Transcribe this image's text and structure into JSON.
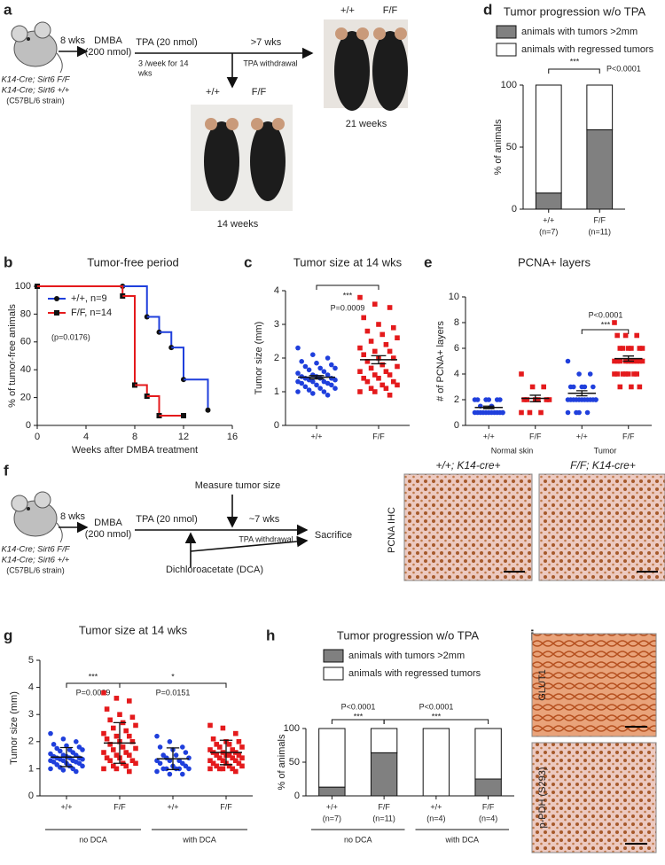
{
  "panel_labels": [
    "a",
    "b",
    "c",
    "d",
    "e",
    "f",
    "g",
    "h",
    "i"
  ],
  "panel_a": {
    "genotypes": [
      "K14-Cre; Sirt6 F/F",
      "K14-Cre; Sirt6 +/+"
    ],
    "strain": "(C57BL/6 strain)",
    "step1": "8 wks",
    "dmba": "DMBA",
    "dmba_dose": "(200 nmol)",
    "tpa": "TPA (20 nmol)",
    "tpa_schedule": [
      "3 /week for 14",
      "wks"
    ],
    "step3": ">7 wks",
    "withdrawal": "TPA withdrawal",
    "photo_late": {
      "labels": [
        "+/+",
        "F/F"
      ],
      "caption": "21 weeks"
    },
    "photo_early": {
      "labels": [
        "+/+",
        "F/F"
      ],
      "caption": "14 weeks"
    }
  },
  "panel_f": {
    "genotypes": [
      "K14-Cre; Sirt6 F/F",
      "K14-Cre; Sirt6 +/+"
    ],
    "strain": "(C57BL/6 strain)",
    "step1": "8 wks",
    "dmba": "DMBA",
    "dmba_dose": "(200 nmol)",
    "tpa": "TPA (20 nmol)",
    "measure": "Measure tumor size",
    "step3": "~7 wks",
    "withdrawal": "TPA withdrawal",
    "end": "Sacrifice",
    "dca": "Dichloroacetate (DCA)",
    "stain": "PCNA IHC",
    "images": [
      "+/+; K14-cre+",
      "F/F; K14-cre+"
    ]
  },
  "panel_i": {
    "stains": [
      "GLUT1",
      "p-PDH (S293)"
    ]
  },
  "chart_data": [
    {
      "type": "bar",
      "stacked": true,
      "title": "Tumor progression w/o TPA",
      "y_label": "% of animals",
      "categories": [
        "+/+",
        "F/F"
      ],
      "category_notes": [
        "(n=7)",
        "(n=11)"
      ],
      "series": [
        {
          "name": "animals with tumors >2mm",
          "color": "#808080",
          "values": [
            13,
            64
          ]
        },
        {
          "name": "animals with regressed tumors",
          "color": "#ffffff",
          "values": [
            87,
            36
          ]
        }
      ],
      "ylim": [
        0,
        100
      ],
      "yticks": [
        0,
        50,
        100
      ],
      "annotations": [
        "***",
        "P<0.0001"
      ]
    },
    {
      "type": "line",
      "step": true,
      "title": "Tumor-free period",
      "x_label": "Weeks after DMBA treatment",
      "y_label": "% of tumor-free animals",
      "xlim": [
        0,
        16
      ],
      "xticks": [
        0,
        4,
        8,
        12,
        16
      ],
      "ylim": [
        0,
        100
      ],
      "yticks": [
        0,
        20,
        40,
        60,
        80,
        100
      ],
      "series": [
        {
          "name": "+/+, n=9",
          "color": "#1f3fdc",
          "marker": "circle",
          "x": [
            0,
            7,
            9,
            10,
            11,
            12,
            14
          ],
          "values": [
            100,
            100,
            78,
            67,
            56,
            33,
            11
          ]
        },
        {
          "name": "F/F, n=14",
          "color": "#e41a1c",
          "marker": "square",
          "x": [
            0,
            7,
            8,
            9,
            10,
            12
          ],
          "values": [
            100,
            93,
            29,
            21,
            7,
            7
          ]
        }
      ],
      "annotations": [
        "(p=0.0176)"
      ]
    },
    {
      "type": "dotplot",
      "title": "Tumor size at 14 wks",
      "y_label": "Tumor size (mm)",
      "categories": [
        "+/+",
        "F/F"
      ],
      "colors": [
        "#1f3fdc",
        "#e41a1c"
      ],
      "markers": [
        "circle",
        "square"
      ],
      "values": [
        [
          2.3,
          2.1,
          2.0,
          1.9,
          1.85,
          1.8,
          1.75,
          1.7,
          1.7,
          1.65,
          1.6,
          1.55,
          1.5,
          1.5,
          1.45,
          1.45,
          1.4,
          1.4,
          1.4,
          1.35,
          1.35,
          1.3,
          1.3,
          1.3,
          1.25,
          1.25,
          1.2,
          1.2,
          1.15,
          1.1,
          1.1,
          1.05,
          1.0,
          1.0,
          0.95,
          0.9
        ],
        [
          3.8,
          3.6,
          3.5,
          3.2,
          3.0,
          2.9,
          2.8,
          2.7,
          2.6,
          2.5,
          2.4,
          2.3,
          2.2,
          2.2,
          2.1,
          2.0,
          2.0,
          1.9,
          1.8,
          1.75,
          1.7,
          1.6,
          1.6,
          1.5,
          1.5,
          1.4,
          1.4,
          1.3,
          1.3,
          1.2,
          1.2,
          1.1,
          1.1,
          1.0,
          1.0,
          0.9
        ]
      ],
      "means": [
        1.43,
        1.95
      ],
      "errors": [
        0.05,
        0.12
      ],
      "ylim": [
        0,
        4
      ],
      "yticks": [
        0,
        1,
        2,
        3,
        4
      ],
      "annotations": [
        "***",
        "P=0.0009"
      ]
    },
    {
      "type": "dotplot",
      "title": "PCNA+ layers",
      "y_label": "# of PCNA+ layers",
      "categories": [
        "+/+",
        "F/F",
        "+/+",
        "F/F"
      ],
      "group_labels": [
        "Normal skin",
        "Tumor"
      ],
      "colors": [
        "#1f3fdc",
        "#e41a1c",
        "#1f3fdc",
        "#e41a1c"
      ],
      "markers": [
        "circle",
        "square",
        "circle",
        "square"
      ],
      "values": [
        [
          2,
          2,
          2,
          2,
          2,
          2,
          1.5,
          1.5,
          1,
          1,
          1,
          1,
          1,
          1,
          1,
          1,
          1,
          1,
          1,
          1
        ],
        [
          4,
          3,
          3,
          2,
          2,
          2,
          2,
          2,
          2,
          1,
          1,
          1
        ],
        [
          5,
          4,
          4,
          3,
          3,
          3,
          3,
          3,
          2,
          2,
          2,
          2,
          2,
          2,
          2,
          2,
          2,
          2,
          2,
          2,
          1,
          1,
          1,
          1
        ],
        [
          8,
          7,
          7,
          7,
          6,
          6,
          6,
          6,
          6,
          6,
          5,
          5,
          5,
          5,
          5,
          5,
          5,
          5,
          5,
          5,
          4,
          4,
          4,
          4,
          4,
          4,
          4,
          3,
          3,
          3
        ]
      ],
      "means": [
        1.4,
        2.1,
        2.5,
        5.2
      ],
      "errors": [
        0.1,
        0.25,
        0.2,
        0.2
      ],
      "ylim": [
        0,
        10
      ],
      "yticks": [
        0,
        2,
        4,
        6,
        8,
        10
      ],
      "annotations": [
        "P<0.0001",
        "***"
      ]
    },
    {
      "type": "dotplot",
      "title": "Tumor size at 14 wks",
      "y_label": "Tumor size (mm)",
      "categories": [
        "+/+",
        "F/F",
        "+/+",
        "F/F"
      ],
      "group_labels": [
        "no DCA",
        "with DCA"
      ],
      "colors": [
        "#1f3fdc",
        "#e41a1c",
        "#1f3fdc",
        "#e41a1c"
      ],
      "markers": [
        "circle",
        "square",
        "circle",
        "square"
      ],
      "values": [
        [
          2.3,
          2.1,
          2.0,
          1.9,
          1.85,
          1.8,
          1.75,
          1.7,
          1.7,
          1.65,
          1.6,
          1.55,
          1.5,
          1.5,
          1.45,
          1.45,
          1.4,
          1.4,
          1.4,
          1.35,
          1.35,
          1.3,
          1.3,
          1.3,
          1.25,
          1.25,
          1.2,
          1.2,
          1.15,
          1.1,
          1.1,
          1.05,
          1.0,
          1.0,
          0.95,
          0.9
        ],
        [
          3.8,
          3.6,
          3.5,
          3.2,
          3.0,
          2.9,
          2.8,
          2.7,
          2.6,
          2.5,
          2.4,
          2.3,
          2.2,
          2.2,
          2.1,
          2.0,
          2.0,
          1.9,
          1.8,
          1.75,
          1.7,
          1.6,
          1.6,
          1.5,
          1.5,
          1.4,
          1.4,
          1.3,
          1.3,
          1.2,
          1.2,
          1.1,
          1.1,
          1.0,
          1.0,
          0.9
        ],
        [
          2.2,
          2.0,
          1.8,
          1.8,
          1.7,
          1.6,
          1.5,
          1.5,
          1.4,
          1.4,
          1.3,
          1.3,
          1.3,
          1.2,
          1.2,
          1.1,
          1.1,
          1.0,
          1.0,
          1.0,
          1.0,
          1.0,
          0.9,
          0.8,
          0.8
        ],
        [
          2.6,
          2.5,
          2.3,
          2.1,
          2.0,
          2.0,
          1.9,
          1.9,
          1.8,
          1.8,
          1.7,
          1.7,
          1.6,
          1.6,
          1.6,
          1.5,
          1.5,
          1.5,
          1.5,
          1.4,
          1.4,
          1.4,
          1.3,
          1.3,
          1.3,
          1.2,
          1.2,
          1.2,
          1.1,
          1.1,
          1.1,
          1.0,
          1.0,
          1.0,
          1.0,
          0.9
        ]
      ],
      "means": [
        1.43,
        1.95,
        1.37,
        1.6
      ],
      "errors": [
        0.35,
        0.75,
        0.4,
        0.45
      ],
      "ylim": [
        0,
        5
      ],
      "yticks": [
        0,
        1,
        2,
        3,
        4,
        5
      ],
      "annotations": [
        "***",
        "P=0.0009",
        "*",
        "P=0.0151"
      ]
    },
    {
      "type": "bar",
      "stacked": true,
      "title": "Tumor progression w/o TPA",
      "y_label": "% of animals",
      "categories": [
        "+/+",
        "F/F",
        "+/+",
        "F/F"
      ],
      "category_notes": [
        "(n=7)",
        "(n=11)",
        "(n=4)",
        "(n=4)"
      ],
      "group_labels": [
        "no DCA",
        "with DCA"
      ],
      "series": [
        {
          "name": "animals with tumors >2mm",
          "color": "#808080",
          "values": [
            13,
            64,
            0,
            25
          ]
        },
        {
          "name": "animals with regressed tumors",
          "color": "#ffffff",
          "values": [
            87,
            36,
            100,
            75
          ]
        }
      ],
      "ylim": [
        0,
        100
      ],
      "yticks": [
        0,
        50,
        100
      ],
      "annotations": [
        "P<0.0001",
        "***",
        "P<0.0001",
        "***"
      ]
    }
  ]
}
